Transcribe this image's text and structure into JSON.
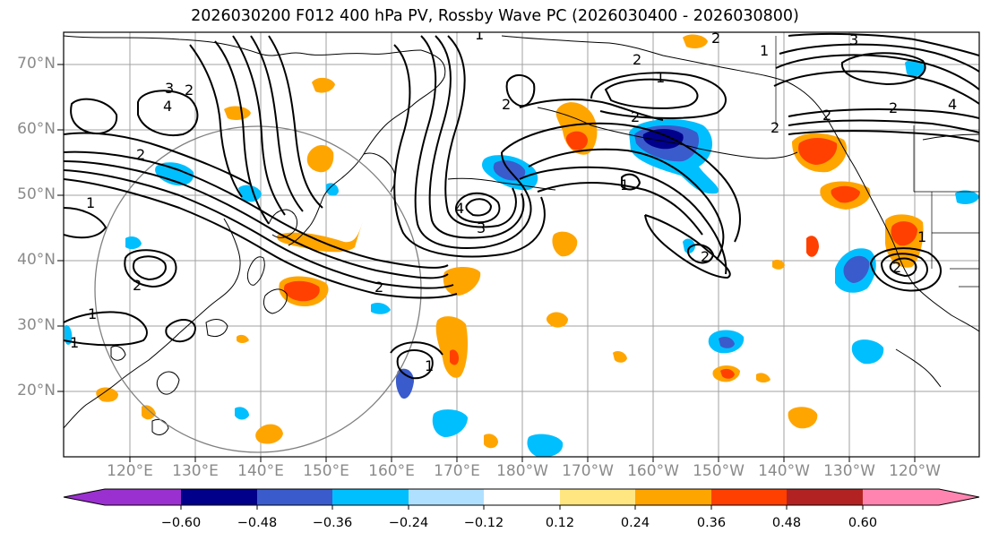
{
  "title": "2026030200 F012 400 hPa PV, Rossby Wave PC (2026030400 - 2026030800)",
  "map": {
    "lat_labels": [
      "70°N",
      "60°N",
      "50°N",
      "40°N",
      "30°N",
      "20°N"
    ],
    "lon_labels": [
      "120°E",
      "130°E",
      "140°E",
      "150°E",
      "160°E",
      "170°E",
      "180°W",
      "170°W",
      "160°W",
      "150°W",
      "140°W",
      "130°W",
      "120°W"
    ],
    "contour_labels": [
      "1",
      "2",
      "3",
      "4"
    ]
  },
  "colorbar": {
    "tick_labels": [
      "−0.60",
      "−0.48",
      "−0.36",
      "−0.24",
      "−0.12",
      "0.12",
      "0.24",
      "0.36",
      "0.48",
      "0.60"
    ],
    "colors": [
      "#9b30d0",
      "#00008b",
      "#3a5bcc",
      "#00bfff",
      "#b0e0ff",
      "#ffffff",
      "#ffe680",
      "#ffa500",
      "#ff4000",
      "#b22222",
      "#ff85b0"
    ]
  }
}
